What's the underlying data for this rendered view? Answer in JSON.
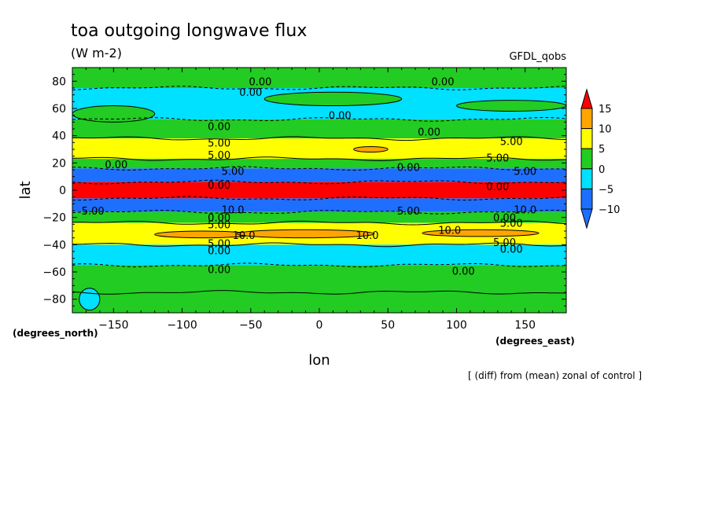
{
  "chart_data": {
    "type": "heatmap",
    "title": "toa outgoing longwave flux",
    "units": "(W m-2)",
    "dataset": "GFDL_qobs",
    "note": "[ (diff) from (mean) zonal of control ]",
    "xlabel": "lon",
    "ylabel": "lat",
    "x_units": "(degrees_east)",
    "y_units": "(degrees_north)",
    "xlim": [
      -180,
      180
    ],
    "ylim": [
      -90,
      90
    ],
    "x_ticks": [
      -150,
      -100,
      -50,
      0,
      50,
      100,
      150
    ],
    "y_ticks": [
      -80,
      -60,
      -40,
      -20,
      0,
      20,
      40,
      60,
      80
    ],
    "colorbar": {
      "levels": [
        -10,
        -5,
        0,
        5,
        10,
        15
      ],
      "colors": [
        "#1f6fff",
        "#00e0ff",
        "#22cc22",
        "#ffff00",
        "#ffa500",
        "#ff0000"
      ],
      "under_color": "#1f6fff",
      "over_color": "#ff0000"
    },
    "zonal_bands": [
      {
        "lat_min": 75,
        "lat_max": 90,
        "class": 0
      },
      {
        "lat_min": 52,
        "lat_max": 75,
        "class": -5
      },
      {
        "lat_min": 38,
        "lat_max": 52,
        "class": 0
      },
      {
        "lat_min": 23,
        "lat_max": 38,
        "class": 5
      },
      {
        "lat_min": 16,
        "lat_max": 23,
        "class": 0
      },
      {
        "lat_min": 6,
        "lat_max": 16,
        "class": -10
      },
      {
        "lat_min": -6,
        "lat_max": 6,
        "class": 15
      },
      {
        "lat_min": -16,
        "lat_max": -6,
        "class": -10
      },
      {
        "lat_min": -24,
        "lat_max": -16,
        "class": 0
      },
      {
        "lat_min": -40,
        "lat_max": -24,
        "class": 5
      },
      {
        "lat_min": -55,
        "lat_max": -40,
        "class": -5
      },
      {
        "lat_min": -75,
        "lat_max": -55,
        "class": 0
      },
      {
        "lat_min": -90,
        "lat_max": -75,
        "class": 0
      }
    ],
    "patches": [
      {
        "lon": [
          -180,
          -120
        ],
        "lat": [
          50,
          62
        ],
        "class": 0
      },
      {
        "lon": [
          -40,
          60
        ],
        "lat": [
          62,
          72
        ],
        "class": 0
      },
      {
        "lon": [
          100,
          180
        ],
        "lat": [
          58,
          66
        ],
        "class": 0
      },
      {
        "lon": [
          25,
          50
        ],
        "lat": [
          28,
          32
        ],
        "class": 10
      },
      {
        "lon": [
          -120,
          -50
        ],
        "lat": [
          -35,
          -30
        ],
        "class": 10
      },
      {
        "lon": [
          -60,
          40
        ],
        "lat": [
          -35,
          -29
        ],
        "class": 10
      },
      {
        "lon": [
          75,
          160
        ],
        "lat": [
          -34,
          -29
        ],
        "class": 10
      },
      {
        "lon": [
          -175,
          -160
        ],
        "lat": [
          -88,
          -72
        ],
        "class": -5
      }
    ],
    "contour_labels": [
      {
        "lon": -43,
        "lat": 80,
        "text": "0.00"
      },
      {
        "lon": -50,
        "lat": 72,
        "text": "0.00"
      },
      {
        "lon": 90,
        "lat": 80,
        "text": "0.00"
      },
      {
        "lon": 15,
        "lat": 55,
        "text": "0.00"
      },
      {
        "lon": -73,
        "lat": 47,
        "text": "0.00"
      },
      {
        "lon": 80,
        "lat": 43,
        "text": "0.00"
      },
      {
        "lon": -73,
        "lat": 35,
        "text": "5.00"
      },
      {
        "lon": 140,
        "lat": 36,
        "text": "5.00"
      },
      {
        "lon": -73,
        "lat": 26,
        "text": "5.00"
      },
      {
        "lon": 130,
        "lat": 24,
        "text": "5.00"
      },
      {
        "lon": -148,
        "lat": 19,
        "text": "0.00"
      },
      {
        "lon": 65,
        "lat": 17,
        "text": "0.00"
      },
      {
        "lon": -63,
        "lat": 14,
        "text": "5.00"
      },
      {
        "lon": 150,
        "lat": 14,
        "text": "5.00"
      },
      {
        "lon": -73,
        "lat": 4,
        "text": "0.00"
      },
      {
        "lon": 130,
        "lat": 3,
        "text": "0.00"
      },
      {
        "lon": -165,
        "lat": -15,
        "text": "5.00"
      },
      {
        "lon": -63,
        "lat": -14,
        "text": "10.0"
      },
      {
        "lon": 65,
        "lat": -15,
        "text": "5.00"
      },
      {
        "lon": 150,
        "lat": -14,
        "text": "10.0"
      },
      {
        "lon": -73,
        "lat": -20,
        "text": "0.00"
      },
      {
        "lon": 135,
        "lat": -20,
        "text": "0.00"
      },
      {
        "lon": -73,
        "lat": -25,
        "text": "5.00"
      },
      {
        "lon": 140,
        "lat": -24,
        "text": "5.00"
      },
      {
        "lon": -55,
        "lat": -33,
        "text": "10.0"
      },
      {
        "lon": 35,
        "lat": -33,
        "text": "10.0"
      },
      {
        "lon": 95,
        "lat": -29,
        "text": "10.0"
      },
      {
        "lon": -73,
        "lat": -39,
        "text": "5.00"
      },
      {
        "lon": 135,
        "lat": -38,
        "text": "5.00"
      },
      {
        "lon": -73,
        "lat": -44,
        "text": "0.00"
      },
      {
        "lon": 140,
        "lat": -43,
        "text": "0.00"
      },
      {
        "lon": -73,
        "lat": -58,
        "text": "0.00"
      },
      {
        "lon": 105,
        "lat": -59,
        "text": "0.00"
      }
    ]
  }
}
